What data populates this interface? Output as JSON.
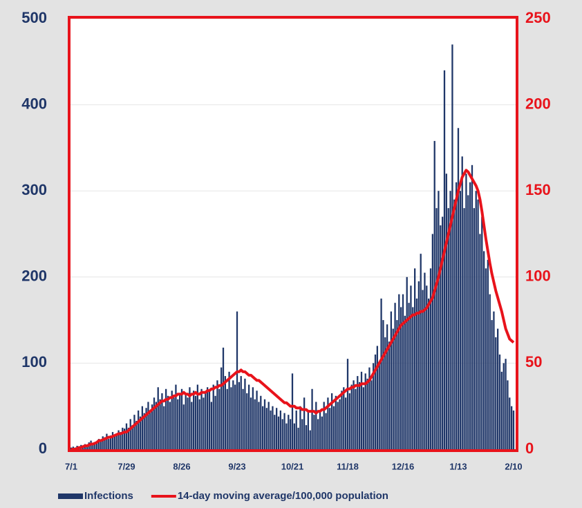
{
  "chart_data": {
    "type": "bar",
    "categories": [
      "7/1",
      null,
      null,
      null,
      null,
      null,
      null,
      null,
      null,
      null,
      null,
      null,
      null,
      null,
      null,
      null,
      null,
      null,
      null,
      null,
      null,
      null,
      null,
      null,
      null,
      null,
      null,
      null,
      "7/29",
      null,
      null,
      null,
      null,
      null,
      null,
      null,
      null,
      null,
      null,
      null,
      null,
      null,
      null,
      null,
      null,
      null,
      null,
      null,
      null,
      null,
      null,
      null,
      null,
      null,
      null,
      null,
      "8/26",
      null,
      null,
      null,
      null,
      null,
      null,
      null,
      null,
      null,
      null,
      null,
      null,
      null,
      null,
      null,
      null,
      null,
      null,
      null,
      null,
      null,
      null,
      null,
      null,
      null,
      null,
      null,
      "9/23",
      null,
      null,
      null,
      null,
      null,
      null,
      null,
      null,
      null,
      null,
      null,
      null,
      null,
      null,
      null,
      null,
      null,
      null,
      null,
      null,
      null,
      null,
      null,
      null,
      null,
      null,
      null,
      "10/21",
      null,
      null,
      null,
      null,
      null,
      null,
      null,
      null,
      null,
      null,
      null,
      null,
      null,
      null,
      null,
      null,
      null,
      null,
      null,
      null,
      null,
      null,
      null,
      null,
      null,
      null,
      null,
      "11/18",
      null,
      null,
      null,
      null,
      null,
      null,
      null,
      null,
      null,
      null,
      null,
      null,
      null,
      null,
      null,
      null,
      null,
      null,
      null,
      null,
      null,
      null,
      null,
      null,
      null,
      null,
      null,
      "12/16",
      null,
      null,
      null,
      null,
      null,
      null,
      null,
      null,
      null,
      null,
      null,
      null,
      null,
      null,
      null,
      null,
      null,
      null,
      null,
      null,
      null,
      null,
      null,
      null,
      null,
      null,
      null,
      "1/13",
      null,
      null,
      null,
      null,
      null,
      null,
      null,
      null,
      null,
      null,
      null,
      null,
      null,
      null,
      null,
      null,
      null,
      null,
      null,
      null,
      null,
      null,
      null,
      null,
      null,
      null,
      null,
      "2/10"
    ],
    "series": [
      {
        "name": "Infections",
        "type": "bar",
        "color": "#1f3668",
        "values": [
          2,
          3,
          2,
          4,
          3,
          5,
          4,
          6,
          5,
          8,
          10,
          6,
          7,
          9,
          12,
          10,
          15,
          14,
          18,
          12,
          16,
          20,
          15,
          18,
          22,
          20,
          25,
          24,
          30,
          25,
          35,
          28,
          40,
          33,
          45,
          38,
          50,
          42,
          48,
          55,
          45,
          52,
          60,
          55,
          72,
          58,
          65,
          50,
          70,
          62,
          55,
          68,
          60,
          75,
          58,
          65,
          70,
          52,
          65,
          60,
          72,
          55,
          68,
          62,
          75,
          58,
          70,
          60,
          65,
          72,
          68,
          55,
          75,
          62,
          80,
          70,
          95,
          118,
          85,
          70,
          90,
          72,
          80,
          75,
          160,
          78,
          85,
          70,
          82,
          65,
          75,
          60,
          72,
          58,
          68,
          55,
          62,
          50,
          58,
          48,
          55,
          45,
          50,
          40,
          48,
          38,
          45,
          35,
          42,
          30,
          40,
          35,
          88,
          30,
          45,
          25,
          50,
          35,
          60,
          28,
          45,
          22,
          70,
          40,
          55,
          35,
          45,
          38,
          55,
          42,
          60,
          48,
          65,
          50,
          62,
          55,
          58,
          68,
          72,
          60,
          105,
          65,
          75,
          80,
          70,
          85,
          78,
          90,
          72,
          88,
          82,
          95,
          80,
          100,
          110,
          120,
          100,
          175,
          150,
          130,
          145,
          125,
          160,
          140,
          170,
          150,
          180,
          165,
          180,
          155,
          200,
          170,
          190,
          165,
          210,
          175,
          195,
          227,
          185,
          205,
          190,
          175,
          210,
          250,
          358,
          280,
          300,
          260,
          270,
          440,
          320,
          280,
          300,
          470,
          290,
          310,
          373,
          300,
          340,
          280,
          320,
          295,
          310,
          330,
          280,
          300,
          290,
          250,
          270,
          230,
          210,
          220,
          180,
          150,
          160,
          130,
          140,
          110,
          90,
          100,
          105,
          80,
          60,
          50,
          45
        ]
      },
      {
        "name": "14-day moving average/100,000 population",
        "type": "line",
        "axis": "y2",
        "color": "#e8131b",
        "values": [
          0,
          0,
          0,
          0.5,
          1,
          1,
          1.5,
          2,
          2,
          2.5,
          3,
          3,
          3.5,
          4,
          5,
          5,
          5.5,
          6,
          6.5,
          7,
          7,
          7.5,
          8,
          8.5,
          9,
          9,
          9.5,
          10,
          10,
          11,
          12,
          13,
          14,
          15,
          16,
          17,
          18,
          19,
          20,
          21,
          22,
          23,
          24,
          25,
          26,
          27,
          28,
          28,
          29,
          29,
          30,
          30,
          31,
          31,
          32,
          32,
          32,
          33,
          32,
          32,
          31,
          32,
          32,
          33,
          32,
          32,
          33,
          33,
          33,
          34,
          34,
          35,
          35,
          36,
          36,
          37,
          37,
          38,
          39,
          40,
          41,
          42,
          43,
          44,
          45,
          45,
          46,
          45,
          45,
          44,
          43,
          43,
          42,
          41,
          40,
          40,
          39,
          38,
          37,
          36,
          35,
          34,
          33,
          32,
          31,
          30,
          29,
          28,
          27,
          27,
          26,
          25,
          25,
          25,
          24,
          24,
          24,
          23,
          23,
          23,
          22,
          22,
          22,
          22,
          21,
          22,
          22,
          23,
          23,
          24,
          25,
          26,
          27,
          28,
          29,
          30,
          31,
          32,
          33,
          34,
          35,
          35,
          36,
          36,
          37,
          37,
          37,
          38,
          38,
          38,
          39,
          40,
          42,
          44,
          46,
          48,
          50,
          52,
          54,
          56,
          58,
          60,
          62,
          64,
          66,
          68,
          70,
          72,
          73,
          74,
          75,
          76,
          77,
          78,
          78,
          79,
          79,
          80,
          80,
          81,
          82,
          84,
          86,
          88,
          92,
          96,
          100,
          105,
          110,
          115,
          120,
          125,
          130,
          135,
          140,
          145,
          150,
          154,
          158,
          160,
          162,
          161,
          159,
          157,
          155,
          153,
          150,
          145,
          138,
          130,
          122,
          115,
          108,
          102,
          97,
          92,
          88,
          84,
          80,
          75,
          70,
          67,
          64,
          63,
          62
        ]
      }
    ],
    "ylim": [
      0,
      500
    ],
    "yticks": [
      0,
      100,
      200,
      300,
      400,
      500
    ],
    "y2lim": [
      0,
      250
    ],
    "y2ticks": [
      0,
      50,
      100,
      150,
      200,
      250
    ],
    "grid": true,
    "legend": "bottom"
  }
}
